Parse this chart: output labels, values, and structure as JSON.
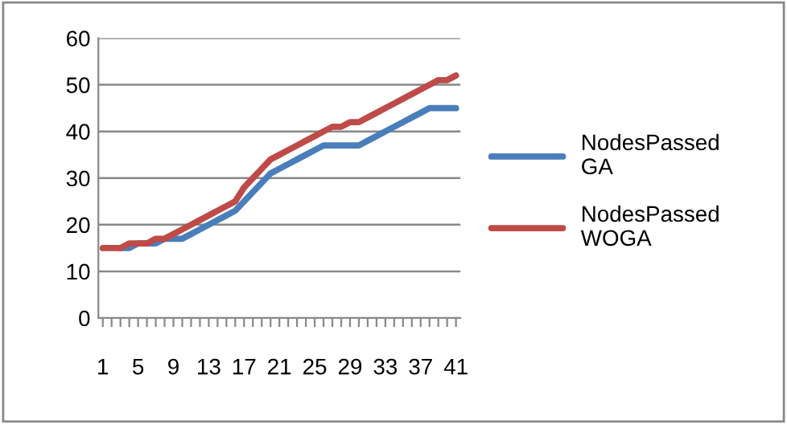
{
  "chart_data": {
    "type": "line",
    "categories": [
      "1",
      null,
      null,
      null,
      "5",
      null,
      null,
      null,
      "9",
      null,
      null,
      null,
      "13",
      null,
      null,
      null,
      "17",
      null,
      null,
      null,
      "21",
      null,
      null,
      null,
      "25",
      null,
      null,
      null,
      "29",
      null,
      null,
      null,
      "33",
      null,
      null,
      null,
      "37",
      null,
      null,
      null,
      "41"
    ],
    "series": [
      {
        "name": "NodesPassed GA",
        "color": "#4a7ebb",
        "values": [
          null,
          null,
          15,
          15,
          16,
          16,
          16,
          17,
          17,
          17,
          18,
          19,
          20,
          21,
          22,
          23,
          25,
          27,
          29,
          31,
          32,
          33,
          34,
          35,
          36,
          37,
          37,
          37,
          37,
          37,
          38,
          39,
          40,
          41,
          42,
          43,
          44,
          45,
          45,
          45,
          45
        ]
      },
      {
        "name": "NodesPassed WOGA",
        "color": "#be4b48",
        "values": [
          15,
          15,
          15,
          16,
          16,
          16,
          17,
          17,
          18,
          19,
          20,
          21,
          22,
          23,
          24,
          25,
          28,
          30,
          32,
          34,
          35,
          36,
          37,
          38,
          39,
          40,
          41,
          41,
          42,
          42,
          43,
          44,
          45,
          46,
          47,
          48,
          49,
          50,
          51,
          51,
          52
        ]
      }
    ],
    "ylim": [
      0,
      60
    ],
    "yticks": [
      0,
      10,
      20,
      30,
      40,
      50,
      60
    ],
    "grid": "y",
    "legend": "right",
    "marker": "none",
    "line_style": "solid"
  }
}
